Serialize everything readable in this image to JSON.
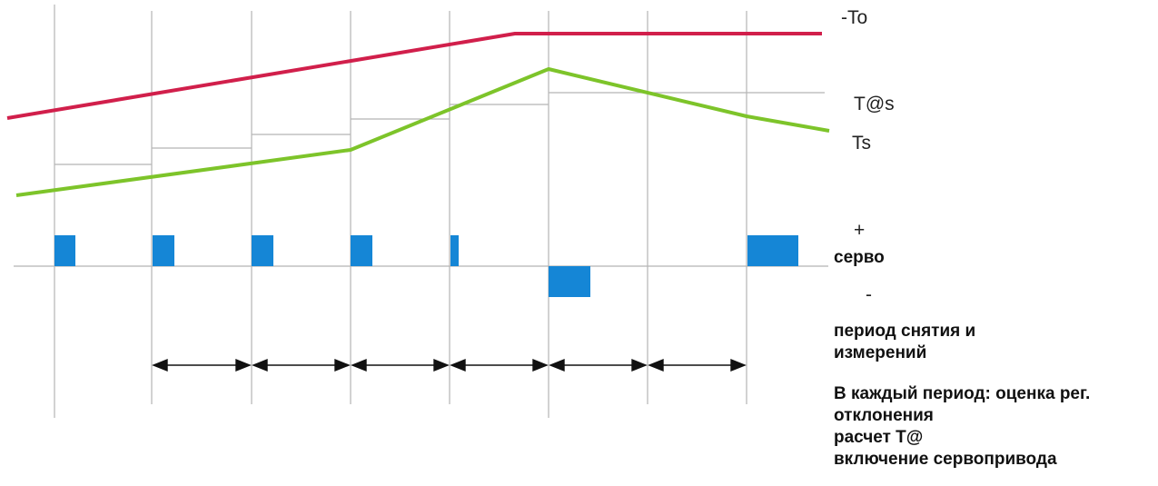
{
  "labels": {
    "to": "-To",
    "t_at_s": "T@s",
    "ts": "Ts",
    "plus": "+",
    "servo": "серво",
    "minus": "-",
    "period_line1": "период снятия и",
    "period_line2": "измерений",
    "note_lines": [
      "В каждый период: оценка рег.",
      "отклонения",
      "расчет Т@",
      "включение сервопривода"
    ]
  },
  "colors": {
    "to_line": "#d11f4b",
    "ts_line": "#7dc42a",
    "servo_pulse": "#1586d6",
    "grid": "#b5b5b5",
    "arrow": "#111111"
  }
}
